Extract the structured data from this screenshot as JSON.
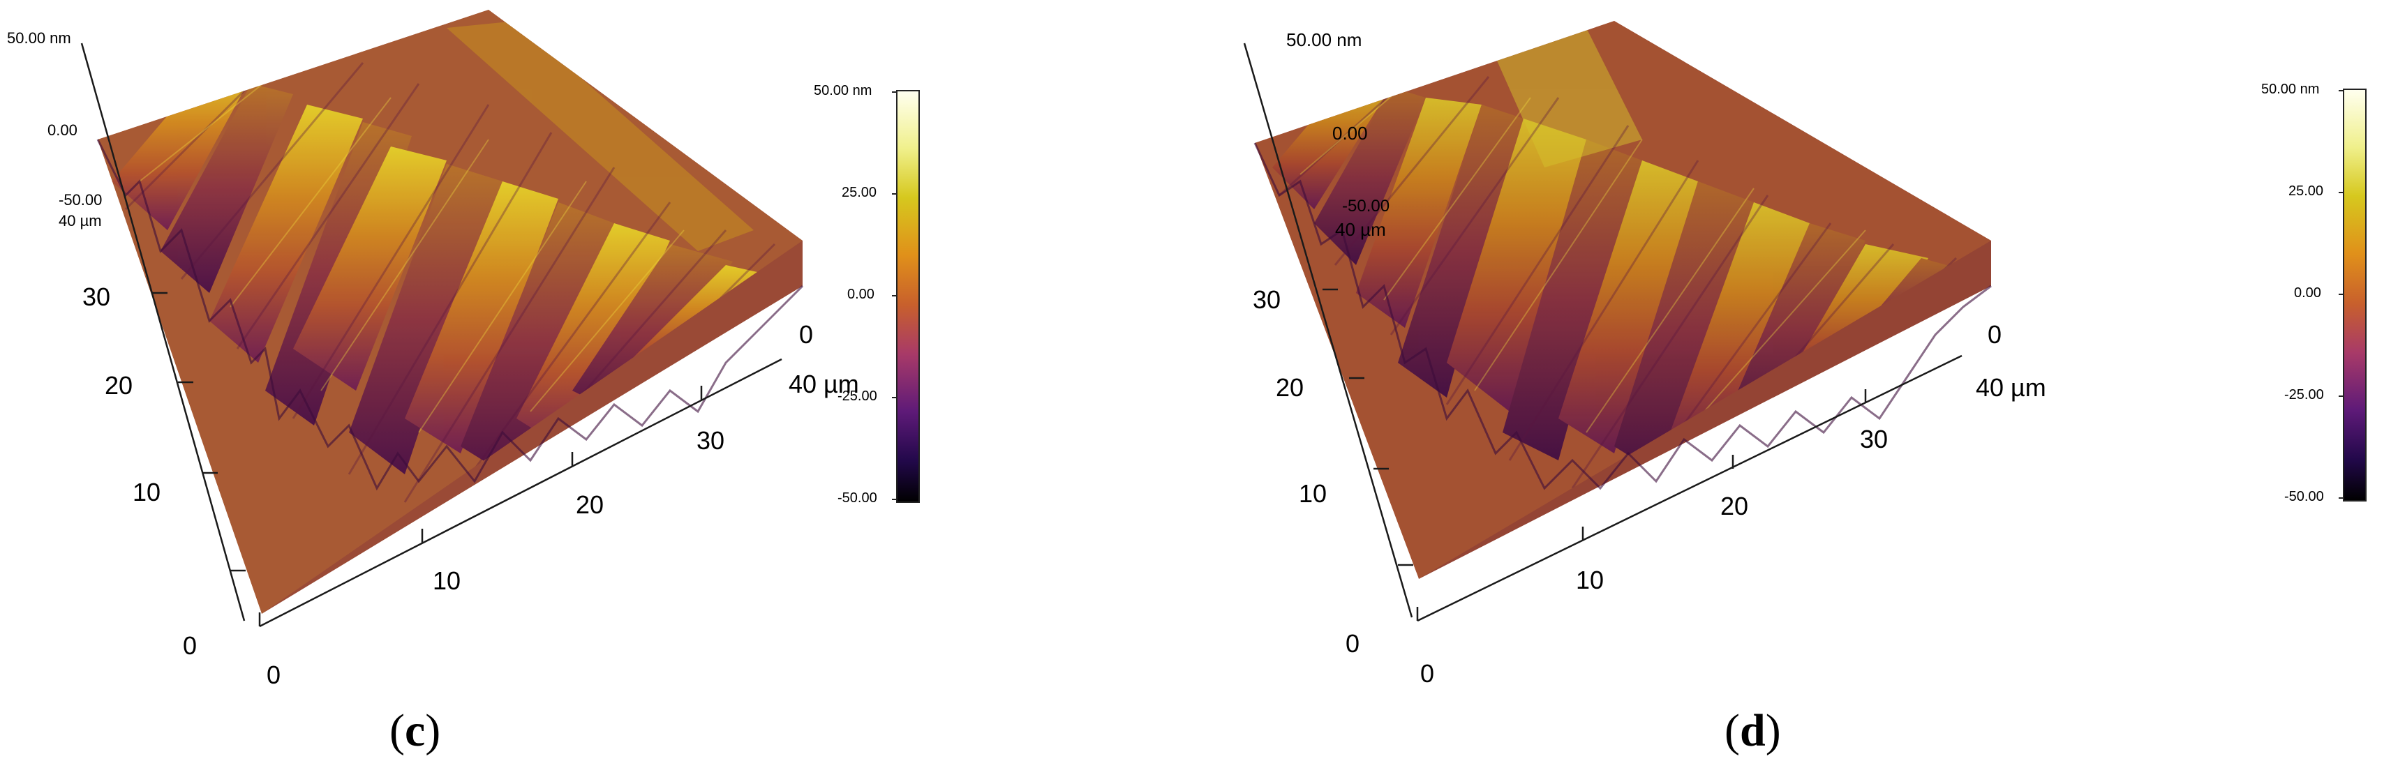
{
  "panels": [
    {
      "id": "c",
      "caption_open": "(",
      "caption_letter": "c",
      "caption_close": ")",
      "z_axis": {
        "top": "50.00 nm",
        "mid": "0.00",
        "bottom": "-50.00"
      },
      "y_axis": {
        "end_label": "40 µm",
        "ticks": [
          "30",
          "20",
          "10",
          "0"
        ]
      },
      "x_axis": {
        "origin": "0",
        "ticks": [
          "10",
          "20",
          "30"
        ],
        "end_label": "40 µm",
        "far_origin": "0"
      },
      "colorbar": {
        "ticks": [
          "50.00 nm",
          "25.00",
          "0.00",
          "-25.00",
          "-50.00"
        ]
      }
    },
    {
      "id": "d",
      "caption_open": "(",
      "caption_letter": "d",
      "caption_close": ")",
      "z_axis": {
        "top": "50.00 nm",
        "mid": "0.00",
        "bottom": "-50.00"
      },
      "y_axis": {
        "end_label": "40 µm",
        "ticks": [
          "30",
          "20",
          "10",
          "0"
        ]
      },
      "x_axis": {
        "origin": "0",
        "ticks": [
          "10",
          "20",
          "30"
        ],
        "end_label": "40 µm",
        "far_origin": "0"
      },
      "colorbar": {
        "ticks": [
          "50.00 nm",
          "25.00",
          "0.00",
          "-25.00",
          "-50.00"
        ]
      }
    }
  ],
  "colormap": [
    "#000000",
    "#2a0a4e",
    "#6a1475",
    "#b03568",
    "#d8622a",
    "#e8a018",
    "#d8d820",
    "#fffff0"
  ]
}
